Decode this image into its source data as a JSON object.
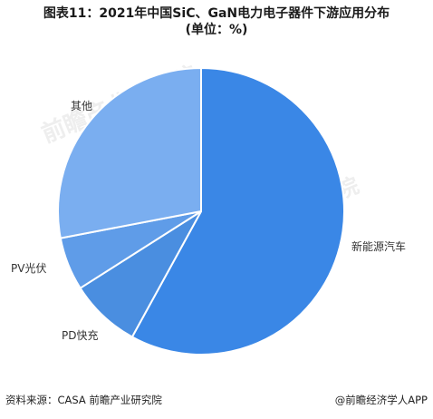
{
  "title": {
    "line1": "图表11：2021年中国SiC、GaN电力电子器件下游应用分布",
    "line2": "(单位：%)"
  },
  "watermark": {
    "text": "前瞻产业研究院"
  },
  "footer": {
    "source": "资料来源：CASA 前瞻产业研究院",
    "brand": "@前瞻经济学人APP"
  },
  "chart_data": {
    "type": "pie",
    "start_angle_deg": 0,
    "direction": "clockwise",
    "slices": [
      {
        "label": "新能源汽车",
        "value": 58,
        "color": "#3a87e6"
      },
      {
        "label": "PD快充",
        "value": 8,
        "color": "#4a8ee0"
      },
      {
        "label": "PV光伏",
        "value": 6,
        "color": "#5f9ce8"
      },
      {
        "label": "其他",
        "value": 28,
        "color": "#7aaef0"
      }
    ]
  }
}
